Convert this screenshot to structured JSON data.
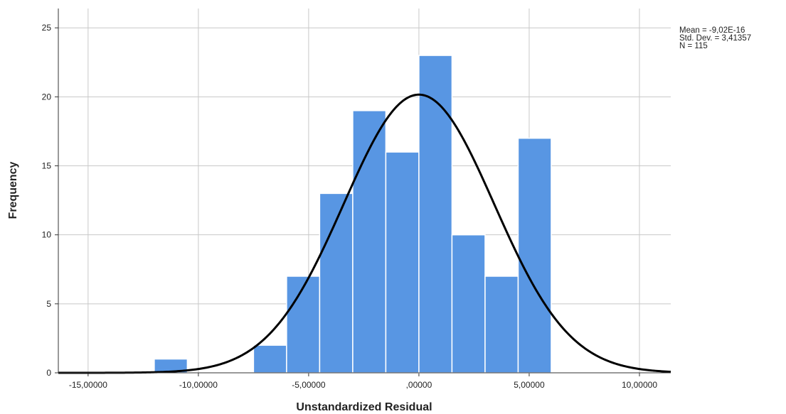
{
  "chart_data": {
    "type": "histogram",
    "xlabel": "Unstandardized Residual",
    "ylabel": "Frequency",
    "bins": [
      -12,
      -10.5,
      -9,
      -7.5,
      -6,
      -4.5,
      -3,
      -1.5,
      0,
      1.5,
      3,
      4.5,
      6
    ],
    "counts": [
      1,
      0,
      0,
      2,
      7,
      13,
      19,
      16,
      23,
      10,
      7,
      17
    ],
    "color": "#5896e3",
    "xlim": [
      -16.35,
      11.42
    ],
    "xticks": [
      {
        "value": -15,
        "label": "-15,00000"
      },
      {
        "value": -10,
        "label": "-10,00000"
      },
      {
        "value": -5,
        "label": "-5,00000"
      },
      {
        "value": 0,
        "label": ",00000"
      },
      {
        "value": 5,
        "label": "5,00000"
      },
      {
        "value": 10,
        "label": "10,00000"
      }
    ],
    "ylim": [
      0,
      26.4
    ],
    "yticks": [
      0,
      5,
      10,
      15,
      20,
      25
    ],
    "grid": true,
    "stats": [
      {
        "value": -9.02e-16,
        "label": "Mean = -9,02E-16"
      },
      {
        "value": 3.41357,
        "label": "Std. Dev. = 3,41357"
      },
      {
        "value": 115,
        "label": "N = 115"
      }
    ],
    "curve_color": "#000000"
  }
}
